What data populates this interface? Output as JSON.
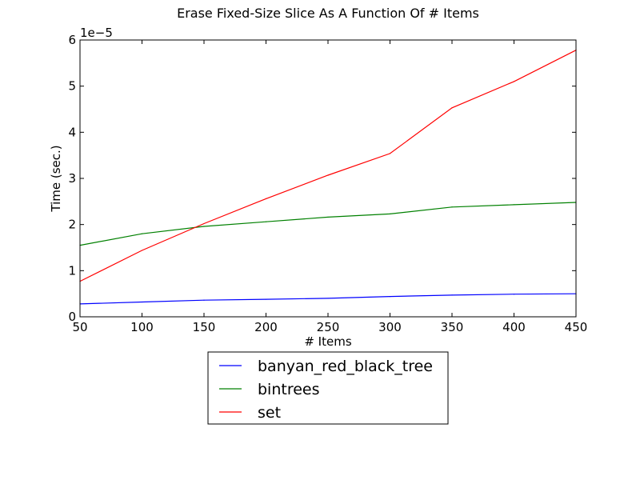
{
  "chart_data": {
    "type": "line",
    "title": "Erase Fixed-Size Slice As A Function Of # Items",
    "xlabel": "# Items",
    "ylabel": "Time (sec.)",
    "y_scale_label": "1e−5",
    "xlim": [
      50,
      450
    ],
    "ylim": [
      0,
      6
    ],
    "xticks": [
      50,
      100,
      150,
      200,
      250,
      300,
      350,
      400,
      450
    ],
    "yticks": [
      0,
      1,
      2,
      3,
      4,
      5,
      6
    ],
    "grid": false,
    "legend_placement": "below plot",
    "x": [
      50,
      100,
      150,
      200,
      250,
      300,
      350,
      400,
      450
    ],
    "series": [
      {
        "name": "banyan_red_black_tree",
        "color": "#0000ff",
        "values": [
          0.28,
          0.32,
          0.36,
          0.38,
          0.4,
          0.44,
          0.47,
          0.49,
          0.5
        ]
      },
      {
        "name": "bintrees",
        "color": "#008000",
        "values": [
          1.55,
          1.8,
          1.96,
          2.06,
          2.16,
          2.23,
          2.38,
          2.43,
          2.48
        ]
      },
      {
        "name": "set",
        "color": "#ff0000",
        "values": [
          0.77,
          1.44,
          2.02,
          2.56,
          3.07,
          3.54,
          4.53,
          5.1,
          5.78
        ]
      }
    ]
  }
}
